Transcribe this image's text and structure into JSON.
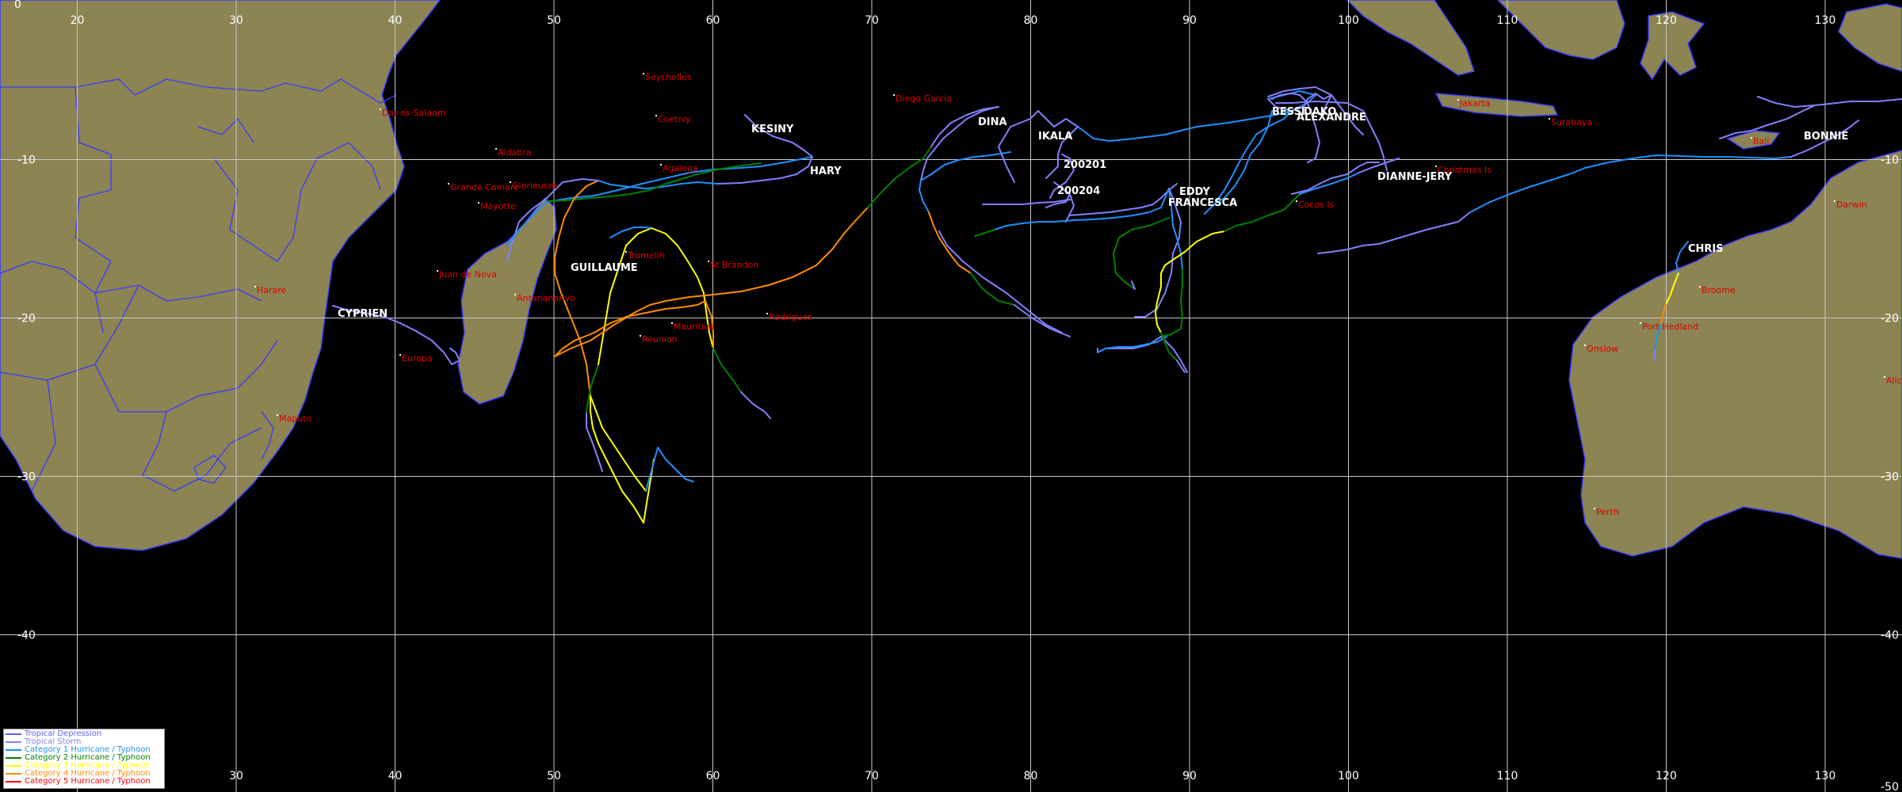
{
  "map": {
    "ocean_color": "#000000",
    "land_color": "#8c8452",
    "border_color": "#3a3aff",
    "grid_color": "#c8c8c8",
    "lon_ticks": [
      "20",
      "30",
      "40",
      "50",
      "60",
      "70",
      "80",
      "90",
      "100",
      "110",
      "120",
      "130"
    ],
    "lat_ticks_left": [
      "0",
      "-10",
      "-20",
      "-30",
      "-40"
    ],
    "lat_ticks_right": [
      "-10",
      "-20",
      "-30",
      "-40"
    ],
    "bottom_edge_label": "-50"
  },
  "places": [
    {
      "id": "seychelles",
      "name": "Seychelles"
    },
    {
      "id": "coetivy",
      "name": "Coetivy"
    },
    {
      "id": "diego-garcia",
      "name": "Diego Garcia"
    },
    {
      "id": "dar-es-salaam",
      "name": "Dar-es-Salaam"
    },
    {
      "id": "aldabra",
      "name": "Aldabra"
    },
    {
      "id": "grande-comore",
      "name": "Grande Comore"
    },
    {
      "id": "glorieuses",
      "name": "Glorieuses"
    },
    {
      "id": "mayotte",
      "name": "Mayotte"
    },
    {
      "id": "agalega",
      "name": "Agalega"
    },
    {
      "id": "tromelin",
      "name": "Tromelin"
    },
    {
      "id": "st-brandon",
      "name": "St Brandon"
    },
    {
      "id": "juan-de-nova",
      "name": "Juan de Nova"
    },
    {
      "id": "antananarivo",
      "name": "Antananarivo"
    },
    {
      "id": "harare",
      "name": "Harare"
    },
    {
      "id": "rodrigues",
      "name": "Rodrigues"
    },
    {
      "id": "mauritius",
      "name": "Mauritius"
    },
    {
      "id": "reunion",
      "name": "Reunion"
    },
    {
      "id": "europa",
      "name": "Europa"
    },
    {
      "id": "maputo",
      "name": "Maputo"
    },
    {
      "id": "cocos-is",
      "name": "Cocos Is"
    },
    {
      "id": "christmas-is",
      "name": "Christmas Is"
    },
    {
      "id": "jakarta",
      "name": "Jakarta"
    },
    {
      "id": "surabaya",
      "name": "Surabaya"
    },
    {
      "id": "bali",
      "name": "Bali"
    },
    {
      "id": "darwin",
      "name": "Darwin"
    },
    {
      "id": "broome",
      "name": "Broome"
    },
    {
      "id": "port-hedland",
      "name": "Port Hedland"
    },
    {
      "id": "onslow",
      "name": "Onslow"
    },
    {
      "id": "alice",
      "name": "Alice"
    },
    {
      "id": "perth",
      "name": "Perth"
    }
  ],
  "storms": [
    {
      "id": "kesiny",
      "name": "KESINY"
    },
    {
      "id": "hary",
      "name": "HARY"
    },
    {
      "id": "dina",
      "name": "DINA"
    },
    {
      "id": "ikala",
      "name": "IKALA"
    },
    {
      "id": "s200201",
      "name": "200201"
    },
    {
      "id": "s200204",
      "name": "200204"
    },
    {
      "id": "eddy",
      "name": "EDDY"
    },
    {
      "id": "francesca",
      "name": "FRANCESCA"
    },
    {
      "id": "bessi",
      "name": "BESSI"
    },
    {
      "id": "dako",
      "name": "DAKO"
    },
    {
      "id": "alexandre",
      "name": "ALEXANDRE"
    },
    {
      "id": "dianne-jery",
      "name": "DIANNE-JERY"
    },
    {
      "id": "bonnie",
      "name": "BONNIE"
    },
    {
      "id": "chris",
      "name": "CHRIS"
    },
    {
      "id": "guillaume",
      "name": "GUILLAUME"
    },
    {
      "id": "cyprien",
      "name": "CYPRIEN"
    }
  ],
  "legend": [
    {
      "label": "Tropical Depression",
      "color": "#6060ff"
    },
    {
      "label": "Tropical Storm",
      "color": "#8080ff"
    },
    {
      "label": "Category 1 Hurricane / Typhoon",
      "color": "#1e90ff"
    },
    {
      "label": "Category 2 Hurricane / Typhoon",
      "color": "#008000"
    },
    {
      "label": "Category 3 Hurricane / Typhoon",
      "color": "#ffff00"
    },
    {
      "label": "Category 4 Hurricane / Typhoon",
      "color": "#ff8c00"
    },
    {
      "label": "Category 5 Hurricane / Typhoon",
      "color": "#ff0000"
    }
  ]
}
